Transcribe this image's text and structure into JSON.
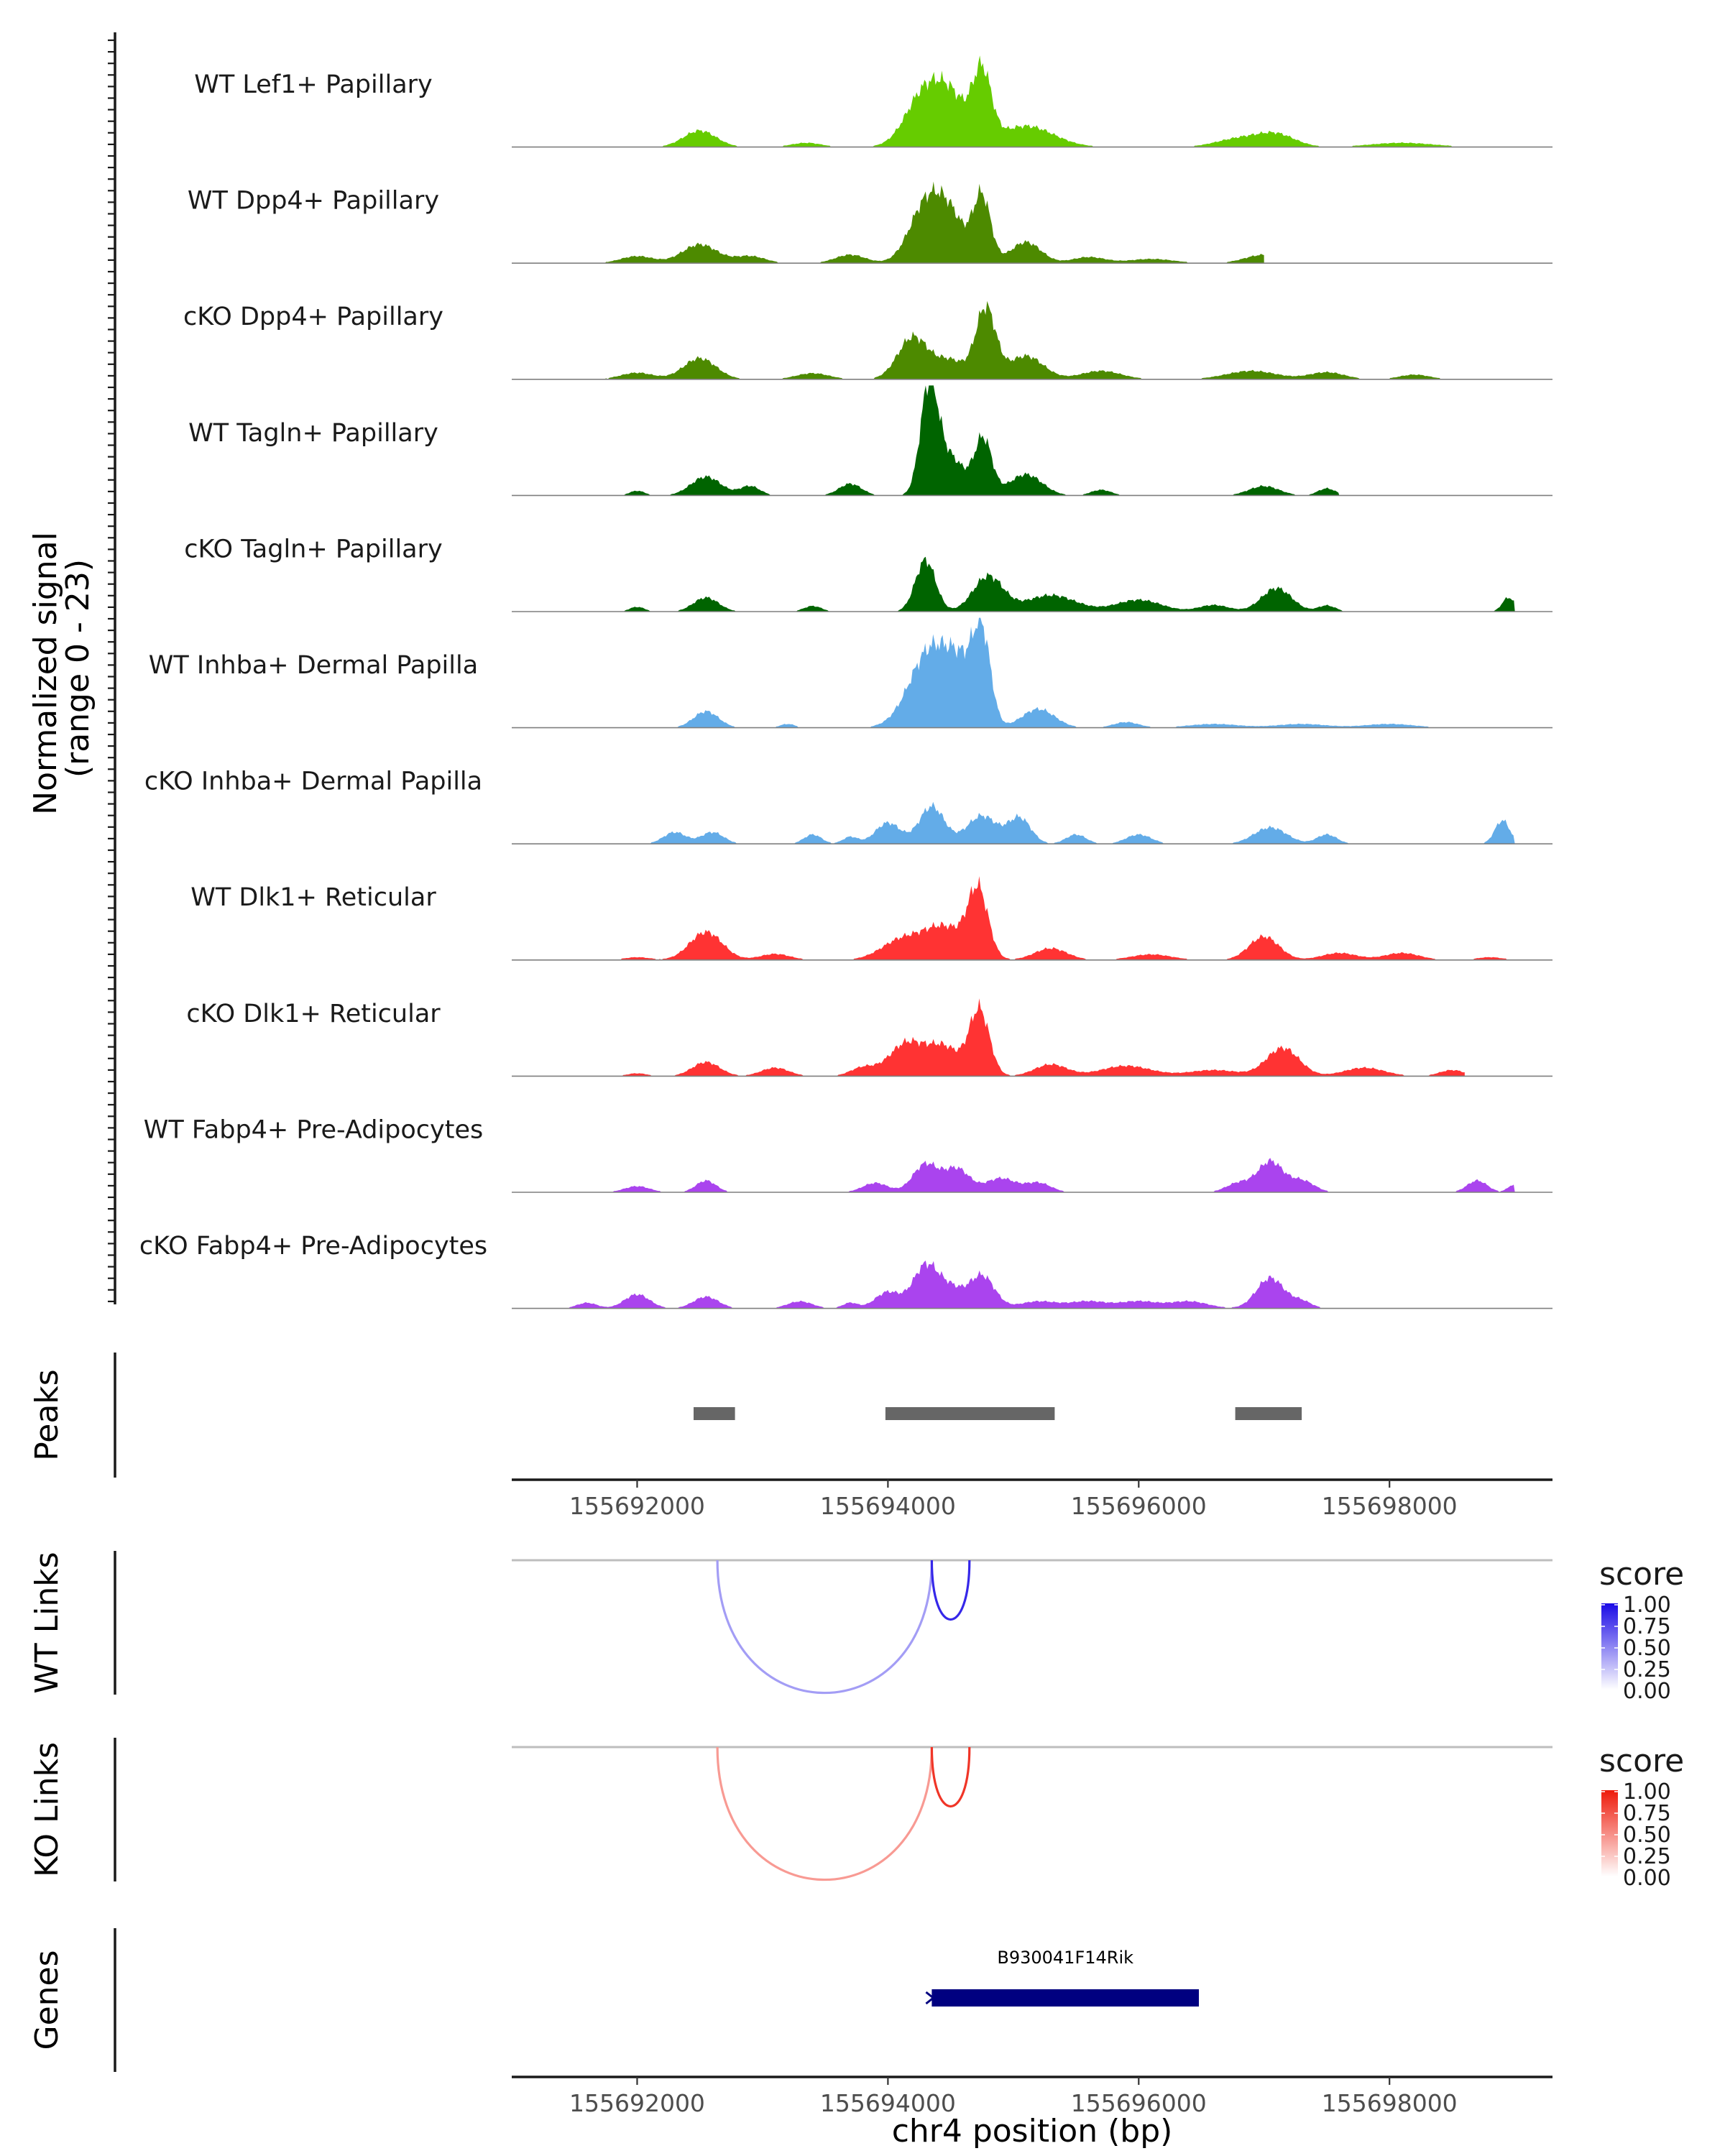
{
  "chart_data": {
    "type": "area",
    "title": "",
    "region": "chr4",
    "xlabel": "chr4 position (bp)",
    "xlim": [
      155691000,
      155699300
    ],
    "ticks": [
      155692000,
      155694000,
      155696000,
      155698000
    ],
    "tick_labels": [
      "155692000",
      "155694000",
      "155696000",
      "155698000"
    ],
    "coverage": {
      "ylabel_line1": "Normalized signal",
      "ylabel_line2": "(range 0 - 23)",
      "yrange": [
        0,
        23
      ],
      "tracks": [
        {
          "name": "WT Lef1+ Papillary",
          "color": "#66CC00",
          "extent": [
            155691000,
            155699000
          ],
          "peaks": [
            [
              155692500,
              3.5,
              130
            ],
            [
              155693350,
              0.9,
              120
            ],
            [
              155694300,
              12.0,
              150
            ],
            [
              155694520,
              8.0,
              120
            ],
            [
              155694750,
              15.0,
              75
            ],
            [
              155695100,
              4.5,
              220
            ],
            [
              155696800,
              1.8,
              180
            ],
            [
              155697100,
              2.6,
              150
            ],
            [
              155698100,
              0.9,
              250
            ]
          ]
        },
        {
          "name": "WT Dpp4+ Papillary",
          "color": "#4D8A00",
          "extent": [
            155691400,
            155697000
          ],
          "peaks": [
            [
              155692000,
              1.5,
              130
            ],
            [
              155692500,
              4.0,
              140
            ],
            [
              155692900,
              1.5,
              120
            ],
            [
              155693700,
              1.8,
              120
            ],
            [
              155694300,
              12.0,
              130
            ],
            [
              155694500,
              9.0,
              120
            ],
            [
              155694750,
              14.0,
              70
            ],
            [
              155695100,
              4.5,
              120
            ],
            [
              155695600,
              1.3,
              130
            ],
            [
              155696100,
              0.9,
              180
            ],
            [
              155697000,
              1.8,
              150
            ],
            [
              155697500,
              1.2,
              120
            ]
          ]
        },
        {
          "name": "cKO Dpp4+ Papillary",
          "color": "#4D8A00",
          "extent": [
            155691500,
            155699000
          ],
          "peaks": [
            [
              155692000,
              1.4,
              130
            ],
            [
              155692500,
              4.5,
              130
            ],
            [
              155693400,
              1.3,
              130
            ],
            [
              155694200,
              9.0,
              120
            ],
            [
              155694500,
              4.0,
              120
            ],
            [
              155694780,
              15.0,
              80
            ],
            [
              155695100,
              5.0,
              140
            ],
            [
              155695700,
              1.8,
              160
            ],
            [
              155696900,
              1.8,
              200
            ],
            [
              155697500,
              1.5,
              140
            ],
            [
              155698200,
              1.0,
              120
            ]
          ]
        },
        {
          "name": "WT Tagln+ Papillary",
          "color": "#006400",
          "extent": [
            155691300,
            155697600
          ],
          "peaks": [
            [
              155692000,
              1.0,
              60
            ],
            [
              155692550,
              4.0,
              120
            ],
            [
              155692900,
              2.0,
              80
            ],
            [
              155693700,
              2.5,
              90
            ],
            [
              155694330,
              23.0,
              70
            ],
            [
              155694500,
              8.0,
              110
            ],
            [
              155694760,
              12.0,
              70
            ],
            [
              155695100,
              4.5,
              130
            ],
            [
              155695700,
              1.2,
              80
            ],
            [
              155697000,
              2.0,
              120
            ],
            [
              155697500,
              1.5,
              70
            ]
          ]
        },
        {
          "name": "cKO Tagln+ Papillary",
          "color": "#006400",
          "extent": [
            155691300,
            155699000
          ],
          "peaks": [
            [
              155692000,
              1.0,
              60
            ],
            [
              155692550,
              3.0,
              100
            ],
            [
              155693400,
              1.2,
              70
            ],
            [
              155694300,
              11.0,
              80
            ],
            [
              155694800,
              7.5,
              120
            ],
            [
              155695300,
              3.5,
              200
            ],
            [
              155696000,
              2.5,
              180
            ],
            [
              155696600,
              1.4,
              120
            ],
            [
              155697100,
              5.0,
              120
            ],
            [
              155697500,
              1.3,
              70
            ],
            [
              155698950,
              3.0,
              50
            ]
          ]
        },
        {
          "name": "WT Inhba+ Dermal Papilla",
          "color": "#63ACE8",
          "extent": [
            155691800,
            155698600
          ],
          "peaks": [
            [
              155692550,
              3.5,
              100
            ],
            [
              155693200,
              0.8,
              60
            ],
            [
              155694350,
              17.0,
              170
            ],
            [
              155694600,
              9.0,
              110
            ],
            [
              155694750,
              18.0,
              70
            ],
            [
              155695200,
              4.0,
              130
            ],
            [
              155695900,
              1.2,
              100
            ],
            [
              155696600,
              0.8,
              200
            ],
            [
              155697300,
              0.8,
              200
            ],
            [
              155698000,
              0.8,
              200
            ]
          ]
        },
        {
          "name": "cKO Inhba+ Dermal Papilla",
          "color": "#63ACE8",
          "extent": [
            155691800,
            155699000
          ],
          "peaks": [
            [
              155692300,
              2.5,
              90
            ],
            [
              155692600,
              2.5,
              90
            ],
            [
              155693400,
              2.0,
              70
            ],
            [
              155693700,
              1.5,
              60
            ],
            [
              155694000,
              4.5,
              100
            ],
            [
              155694350,
              8.0,
              100
            ],
            [
              155694750,
              6.0,
              120
            ],
            [
              155695050,
              5.5,
              90
            ],
            [
              155695500,
              2.0,
              80
            ],
            [
              155696000,
              2.0,
              100
            ],
            [
              155697050,
              3.5,
              130
            ],
            [
              155697500,
              2.0,
              80
            ],
            [
              155698900,
              5.0,
              60
            ]
          ]
        },
        {
          "name": "WT Dlk1+ Reticular",
          "color": "#FF3333",
          "extent": [
            155691500,
            155699000
          ],
          "peaks": [
            [
              155692000,
              0.6,
              100
            ],
            [
              155692550,
              6.0,
              130
            ],
            [
              155693100,
              1.3,
              120
            ],
            [
              155694100,
              4.0,
              160
            ],
            [
              155694450,
              7.0,
              170
            ],
            [
              155694720,
              14.0,
              80
            ],
            [
              155695300,
              2.5,
              130
            ],
            [
              155696100,
              1.2,
              160
            ],
            [
              155697000,
              5.0,
              120
            ],
            [
              155697600,
              1.5,
              140
            ],
            [
              155698100,
              1.5,
              140
            ],
            [
              155698800,
              0.6,
              100
            ]
          ]
        },
        {
          "name": "cKO Dlk1+ Reticular",
          "color": "#FF3333",
          "extent": [
            155691500,
            155698600
          ],
          "peaks": [
            [
              155692000,
              0.6,
              80
            ],
            [
              155692550,
              3.0,
              110
            ],
            [
              155693100,
              1.8,
              110
            ],
            [
              155693800,
              1.8,
              100
            ],
            [
              155694150,
              7.0,
              140
            ],
            [
              155694450,
              6.0,
              130
            ],
            [
              155694730,
              14.0,
              80
            ],
            [
              155695300,
              2.5,
              130
            ],
            [
              155695900,
              2.2,
              200
            ],
            [
              155696600,
              1.3,
              200
            ],
            [
              155697150,
              6.0,
              130
            ],
            [
              155697800,
              1.8,
              160
            ],
            [
              155698500,
              1.3,
              100
            ]
          ]
        },
        {
          "name": "WT Fabp4+ Pre-Adipocytes",
          "color": "#AA44EE",
          "extent": [
            155691500,
            155699000
          ],
          "peaks": [
            [
              155692000,
              1.3,
              100
            ],
            [
              155692550,
              2.5,
              80
            ],
            [
              155693900,
              2.0,
              100
            ],
            [
              155694300,
              6.0,
              100
            ],
            [
              155694550,
              5.0,
              100
            ],
            [
              155694900,
              3.0,
              120
            ],
            [
              155695200,
              2.0,
              100
            ],
            [
              155696800,
              2.0,
              100
            ],
            [
              155697050,
              6.5,
              100
            ],
            [
              155697300,
              2.5,
              100
            ],
            [
              155698700,
              2.5,
              80
            ],
            [
              155698980,
              1.5,
              40
            ]
          ]
        },
        {
          "name": "cKO Fabp4+ Pre-Adipocytes",
          "color": "#AA44EE",
          "extent": [
            155691300,
            155698000
          ],
          "peaks": [
            [
              155691600,
              1.2,
              80
            ],
            [
              155692000,
              3.0,
              100
            ],
            [
              155692550,
              2.5,
              100
            ],
            [
              155693300,
              1.5,
              100
            ],
            [
              155693700,
              1.2,
              60
            ],
            [
              155694000,
              3.5,
              100
            ],
            [
              155694300,
              9.0,
              100
            ],
            [
              155694500,
              4.0,
              100
            ],
            [
              155694750,
              7.0,
              100
            ],
            [
              155695200,
              1.5,
              150
            ],
            [
              155695600,
              1.5,
              150
            ],
            [
              155696000,
              1.5,
              150
            ],
            [
              155696400,
              1.5,
              150
            ],
            [
              155697050,
              6.5,
              110
            ],
            [
              155697300,
              1.5,
              80
            ]
          ]
        }
      ]
    },
    "peaks_track": {
      "label": "Peaks",
      "color": "#666666",
      "peaks": [
        [
          155692450,
          155692780
        ],
        [
          155693980,
          155695330
        ],
        [
          155696770,
          155697300
        ]
      ]
    },
    "links": [
      {
        "label": "WT Links",
        "legend_title": "score",
        "color_low": "#ffffff",
        "color_high": "#1a0ae6",
        "legend_ticks": [
          "1.00",
          "0.75",
          "0.50",
          "0.25",
          "0.00"
        ],
        "arcs": [
          {
            "start": 155692640,
            "end": 155694350,
            "score": 0.25
          },
          {
            "start": 155694350,
            "end": 155694650,
            "score": 0.85
          }
        ]
      },
      {
        "label": "KO Links",
        "legend_title": "score",
        "color_low": "#ffffff",
        "color_high": "#ee1a0a",
        "legend_ticks": [
          "1.00",
          "0.75",
          "0.50",
          "0.25",
          "0.00"
        ],
        "arcs": [
          {
            "start": 155692640,
            "end": 155694350,
            "score": 0.3
          },
          {
            "start": 155694350,
            "end": 155694650,
            "score": 0.85
          }
        ]
      }
    ],
    "genes": {
      "label": "Genes",
      "color": "#000080",
      "items": [
        {
          "name": "B930041F14Rik",
          "start": 155694350,
          "end": 155696480,
          "strand": "-"
        }
      ]
    }
  }
}
